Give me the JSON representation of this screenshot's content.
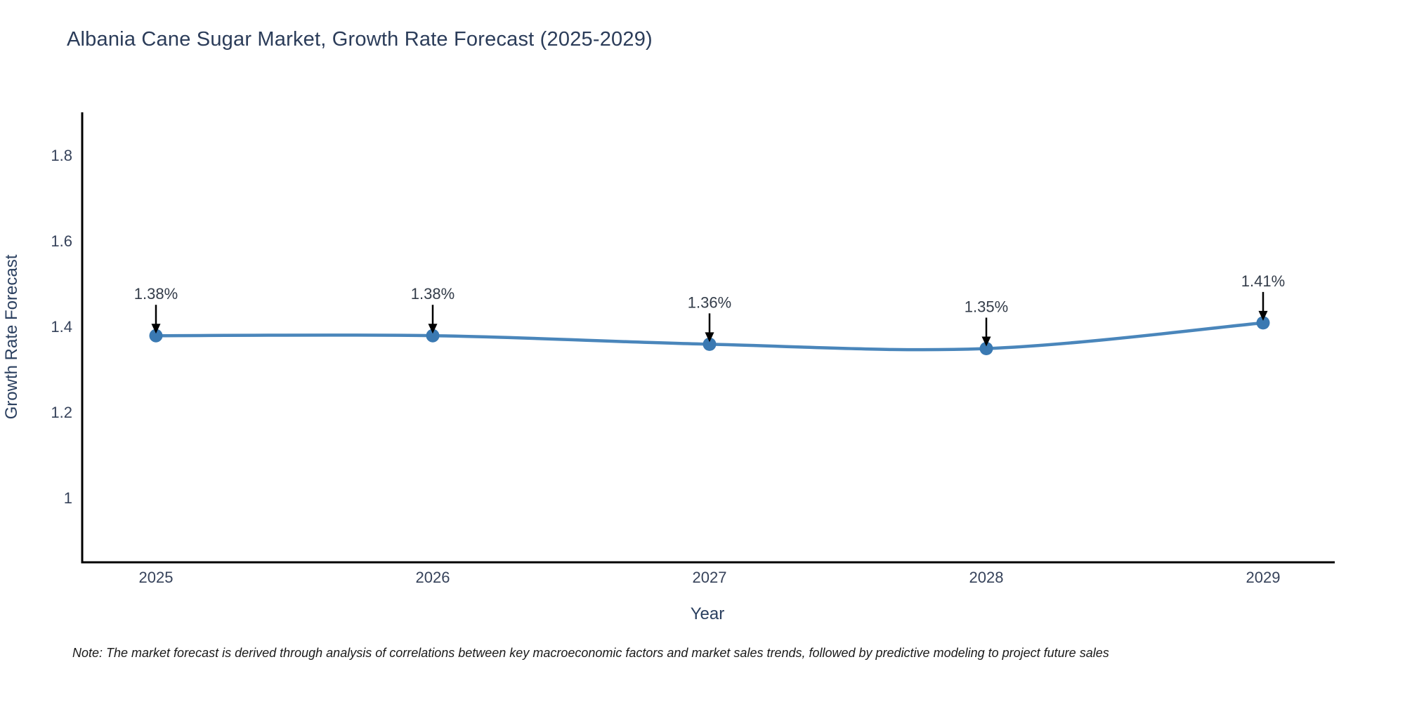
{
  "title": {
    "text": "Albania Cane Sugar Market, Growth Rate Forecast (2025-2029)"
  },
  "note": {
    "text": "Note: The market forecast is derived through analysis of correlations between key macroeconomic factors and market sales trends, followed by predictive modeling to project future sales"
  },
  "chart_data": {
    "type": "line",
    "title": "Albania Cane Sugar Market, Growth Rate Forecast (2025-2029)",
    "x": [
      "2025",
      "2026",
      "2027",
      "2028",
      "2029"
    ],
    "values": [
      1.38,
      1.38,
      1.36,
      1.35,
      1.41
    ],
    "point_labels": [
      "1.38%",
      "1.38%",
      "1.36%",
      "1.35%",
      "1.41%"
    ],
    "xlabel": "Year",
    "ylabel": "Growth Rate Forecast",
    "yticks": [
      "1.8",
      "1.6",
      "1.4",
      "1.2",
      "1"
    ],
    "ytick_values": [
      1.8,
      1.6,
      1.4,
      1.2,
      1.0
    ],
    "ylim": [
      0.85,
      1.9
    ],
    "grid": false,
    "legend": "none",
    "annotation_style": "value label with downward arrow to each point",
    "colors": {
      "line": "#4a86bb",
      "marker": "#3a79b2",
      "axis": "#000000",
      "axis_text": "#2a3f5f",
      "tick_text": "#36425a",
      "annotation_text": "#333c49",
      "arrow": "#000000",
      "background": "#ffffff"
    }
  }
}
